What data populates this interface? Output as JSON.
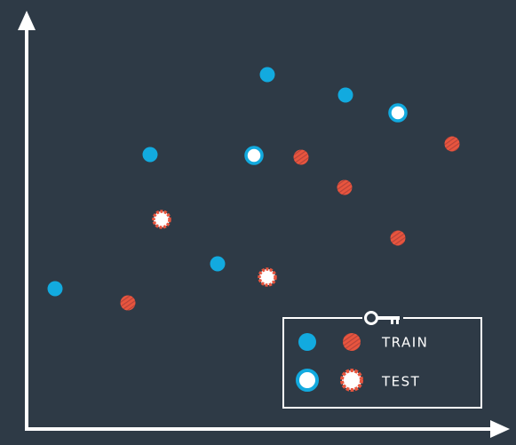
{
  "legend": {
    "train": "TRAIN",
    "test": "TEST"
  }
}
